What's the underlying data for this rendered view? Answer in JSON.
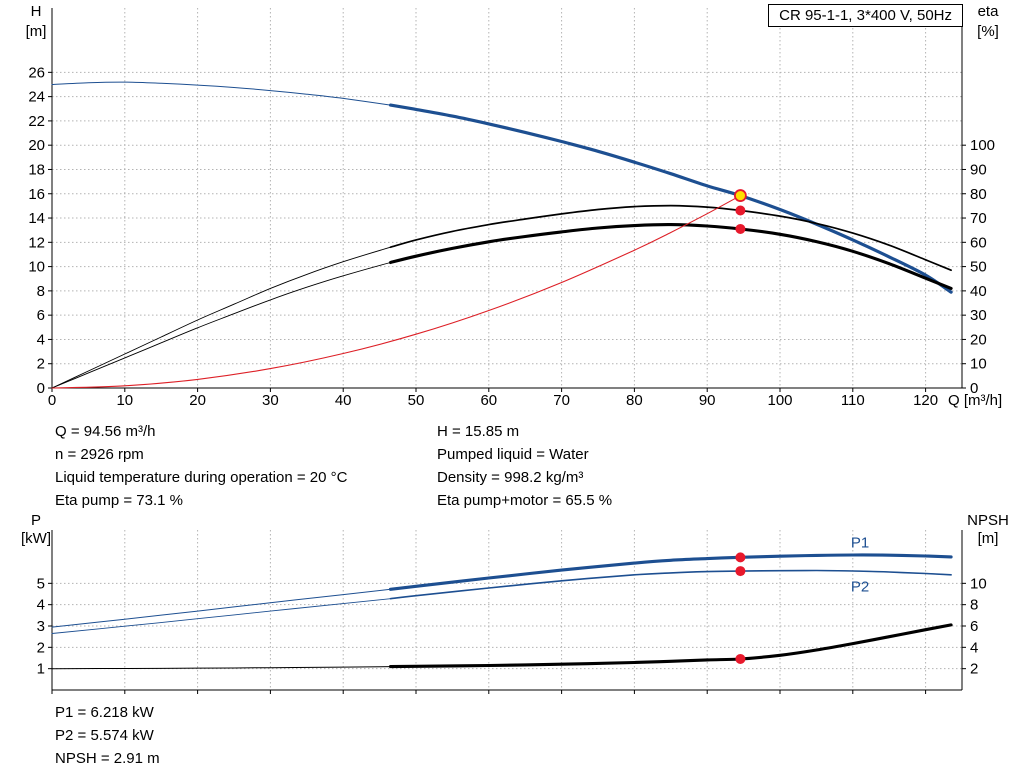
{
  "title_box": "CR 95-1-1, 3*400 V, 50Hz",
  "readouts_top": {
    "left": [
      "Q = 94.56 m³/h",
      "n = 2926 rpm",
      "Liquid temperature during operation = 20 °C",
      "Eta pump = 73.1 %"
    ],
    "right": [
      "H = 15.85 m",
      "Pumped liquid = Water",
      "Density = 998.2 kg/m³",
      "Eta pump+motor = 65.5 %"
    ]
  },
  "readouts_bottom": [
    "P1 = 6.218 kW",
    "P2 = 5.574 kW",
    "NPSH = 2.91 m"
  ],
  "colors": {
    "curve_blue": "#1d4f91",
    "curve_black": "#000000",
    "curve_red": "#dd1f26",
    "marker_red": "#e8192c",
    "marker_yellow": "#ffdf00",
    "grid": "#b3b3b3"
  },
  "chart_data": [
    {
      "type": "line",
      "title": "CR 95-1-1, 3*400 V, 50Hz",
      "grid": true,
      "x_axis": {
        "label": "Q [m³/h]",
        "min": 0,
        "max": 125,
        "ticks": [
          0,
          10,
          20,
          30,
          40,
          50,
          60,
          70,
          80,
          90,
          100,
          110,
          120
        ],
        "show_tick_labels": true
      },
      "y_left": {
        "label": "H",
        "unit": "[m]",
        "min": 0,
        "max": 31.3,
        "ticks": [
          0,
          2,
          4,
          6,
          8,
          10,
          12,
          14,
          16,
          18,
          20,
          22,
          24,
          26
        ]
      },
      "y_right": {
        "label": "eta",
        "unit": "[%]",
        "min": 0,
        "max": 100,
        "ticks": [
          0,
          10,
          20,
          30,
          40,
          50,
          60,
          70,
          80,
          90,
          100
        ],
        "left_equiv": 0.2
      },
      "series": [
        {
          "name": "head-curve",
          "axis": "left",
          "color": "#1d4f91",
          "width": 1,
          "width_op": 3.2,
          "op_range_start": 46.5,
          "points": [
            [
              0,
              25.0
            ],
            [
              5,
              25.15
            ],
            [
              10,
              25.2
            ],
            [
              15,
              25.1
            ],
            [
              20,
              24.95
            ],
            [
              25,
              24.75
            ],
            [
              30,
              24.5
            ],
            [
              35,
              24.2
            ],
            [
              40,
              23.85
            ],
            [
              46.5,
              23.3
            ],
            [
              50,
              22.95
            ],
            [
              55,
              22.4
            ],
            [
              60,
              21.75
            ],
            [
              65,
              21.05
            ],
            [
              70,
              20.3
            ],
            [
              75,
              19.5
            ],
            [
              80,
              18.6
            ],
            [
              85,
              17.65
            ],
            [
              90,
              16.65
            ],
            [
              94.56,
              15.85
            ],
            [
              100,
              14.7
            ],
            [
              105,
              13.5
            ],
            [
              110,
              12.2
            ],
            [
              115,
              10.8
            ],
            [
              120,
              9.3
            ],
            [
              123.5,
              7.9
            ]
          ]
        },
        {
          "name": "eta-pump-curve",
          "axis": "right",
          "color": "#000000",
          "width": 0.9,
          "width_op": 1.7,
          "op_range_start": 46.5,
          "points": [
            [
              0,
              0
            ],
            [
              5,
              7
            ],
            [
              10,
              14
            ],
            [
              15,
              21
            ],
            [
              20,
              28
            ],
            [
              25,
              34.5
            ],
            [
              30,
              41
            ],
            [
              35,
              46.8
            ],
            [
              40,
              52
            ],
            [
              46.5,
              58
            ],
            [
              50,
              61
            ],
            [
              55,
              64.5
            ],
            [
              60,
              67.3
            ],
            [
              65,
              69.6
            ],
            [
              70,
              71.7
            ],
            [
              75,
              73.5
            ],
            [
              80,
              74.7
            ],
            [
              85,
              75.1
            ],
            [
              90,
              74.5
            ],
            [
              94.56,
              73.1
            ],
            [
              100,
              70.8
            ],
            [
              105,
              67.8
            ],
            [
              110,
              63.8
            ],
            [
              115,
              58.8
            ],
            [
              120,
              52.8
            ],
            [
              123.5,
              48.5
            ]
          ]
        },
        {
          "name": "eta-pump-motor-curve",
          "axis": "right",
          "color": "#000000",
          "width": 0.9,
          "width_op": 3.1,
          "op_range_start": 46.5,
          "points": [
            [
              0,
              0
            ],
            [
              5,
              6.2
            ],
            [
              10,
              12.4
            ],
            [
              15,
              18.6
            ],
            [
              20,
              24.8
            ],
            [
              25,
              30.6
            ],
            [
              30,
              36.3
            ],
            [
              35,
              41.5
            ],
            [
              40,
              46.2
            ],
            [
              46.5,
              51.7
            ],
            [
              50,
              54.3
            ],
            [
              55,
              57.5
            ],
            [
              60,
              60.2
            ],
            [
              65,
              62.4
            ],
            [
              70,
              64.3
            ],
            [
              75,
              65.9
            ],
            [
              80,
              66.9
            ],
            [
              85,
              67.3
            ],
            [
              90,
              66.7
            ],
            [
              94.56,
              65.5
            ],
            [
              100,
              63.3
            ],
            [
              105,
              60.3
            ],
            [
              110,
              56.3
            ],
            [
              115,
              51.2
            ],
            [
              120,
              45.2
            ],
            [
              123.5,
              41
            ]
          ]
        },
        {
          "name": "system-curve",
          "axis": "left",
          "color": "#dd1f26",
          "width": 1.1,
          "points": [
            [
              0,
              0
            ],
            [
              10,
              0.18
            ],
            [
              20,
              0.71
            ],
            [
              30,
              1.6
            ],
            [
              40,
              2.84
            ],
            [
              50,
              4.43
            ],
            [
              60,
              6.38
            ],
            [
              70,
              8.69
            ],
            [
              80,
              11.35
            ],
            [
              85,
              12.81
            ],
            [
              90,
              14.36
            ],
            [
              94.56,
              15.85
            ]
          ]
        }
      ],
      "markers": [
        {
          "name": "eta-pump-duty-point",
          "q": 94.56,
          "v": 73.1,
          "axis": "right",
          "style": "red"
        },
        {
          "name": "eta-pump-motor-duty-point",
          "q": 94.56,
          "v": 65.5,
          "axis": "right",
          "style": "red"
        },
        {
          "name": "duty-point",
          "q": 94.56,
          "v": 15.85,
          "axis": "left",
          "style": "duty"
        }
      ],
      "annotations": []
    },
    {
      "type": "line",
      "title": "",
      "grid": true,
      "x_axis": {
        "label": "",
        "min": 0,
        "max": 125,
        "ticks": [
          0,
          10,
          20,
          30,
          40,
          50,
          60,
          70,
          80,
          90,
          100,
          110,
          120
        ],
        "show_tick_labels": false
      },
      "y_left": {
        "label": "P",
        "unit": "[kW]",
        "min": 0,
        "max": 7.5,
        "ticks": [
          1,
          2,
          3,
          4,
          5
        ]
      },
      "y_right": {
        "label": "NPSH",
        "unit": "[m]",
        "min": 0,
        "max": 15,
        "ticks": [
          2,
          4,
          6,
          8,
          10
        ],
        "left_equiv": 0.5
      },
      "series": [
        {
          "name": "p1-curve",
          "axis": "left",
          "color": "#1d4f91",
          "width": 1,
          "width_op": 3.1,
          "op_range_start": 46.5,
          "points": [
            [
              0,
              2.95
            ],
            [
              10,
              3.32
            ],
            [
              20,
              3.7
            ],
            [
              30,
              4.09
            ],
            [
              40,
              4.47
            ],
            [
              46.5,
              4.72
            ],
            [
              50,
              4.86
            ],
            [
              60,
              5.25
            ],
            [
              70,
              5.62
            ],
            [
              80,
              5.95
            ],
            [
              85,
              6.08
            ],
            [
              90,
              6.16
            ],
            [
              94.56,
              6.218
            ],
            [
              100,
              6.27
            ],
            [
              105,
              6.31
            ],
            [
              110,
              6.33
            ],
            [
              115,
              6.32
            ],
            [
              120,
              6.28
            ],
            [
              123.5,
              6.24
            ]
          ]
        },
        {
          "name": "p2-curve",
          "axis": "left",
          "color": "#1d4f91",
          "width": 0.9,
          "width_op": 1.6,
          "op_range_start": 46.5,
          "points": [
            [
              0,
              2.65
            ],
            [
              10,
              2.99
            ],
            [
              20,
              3.34
            ],
            [
              30,
              3.7
            ],
            [
              40,
              4.05
            ],
            [
              46.5,
              4.28
            ],
            [
              50,
              4.42
            ],
            [
              60,
              4.78
            ],
            [
              70,
              5.12
            ],
            [
              80,
              5.4
            ],
            [
              85,
              5.49
            ],
            [
              90,
              5.55
            ],
            [
              94.56,
              5.574
            ],
            [
              100,
              5.59
            ],
            [
              105,
              5.6
            ],
            [
              110,
              5.58
            ],
            [
              115,
              5.53
            ],
            [
              120,
              5.46
            ],
            [
              123.5,
              5.4
            ]
          ]
        },
        {
          "name": "npsh-curve",
          "axis": "right",
          "color": "#000000",
          "width": 1,
          "width_op": 3.1,
          "op_range_start": 46.5,
          "points": [
            [
              0,
              2.0
            ],
            [
              10,
              2.02
            ],
            [
              20,
              2.05
            ],
            [
              30,
              2.09
            ],
            [
              40,
              2.15
            ],
            [
              46.5,
              2.19
            ],
            [
              50,
              2.22
            ],
            [
              60,
              2.3
            ],
            [
              70,
              2.42
            ],
            [
              80,
              2.58
            ],
            [
              85,
              2.69
            ],
            [
              90,
              2.82
            ],
            [
              94.56,
              2.91
            ],
            [
              100,
              3.25
            ],
            [
              105,
              3.75
            ],
            [
              110,
              4.35
            ],
            [
              115,
              5.0
            ],
            [
              120,
              5.65
            ],
            [
              123.5,
              6.1
            ]
          ]
        }
      ],
      "markers": [
        {
          "name": "p1-duty-point",
          "q": 94.56,
          "v": 6.218,
          "axis": "left",
          "style": "red"
        },
        {
          "name": "p2-duty-point",
          "q": 94.56,
          "v": 5.574,
          "axis": "left",
          "style": "red"
        },
        {
          "name": "npsh-duty-point",
          "q": 94.56,
          "v": 2.91,
          "axis": "right",
          "style": "red"
        }
      ],
      "annotations": [
        {
          "text": "P1",
          "q": 111,
          "v": 6.68,
          "axis": "left",
          "color": "#1d4f91"
        },
        {
          "text": "P2",
          "q": 111,
          "v": 4.62,
          "axis": "left",
          "color": "#1d4f91"
        }
      ]
    }
  ]
}
